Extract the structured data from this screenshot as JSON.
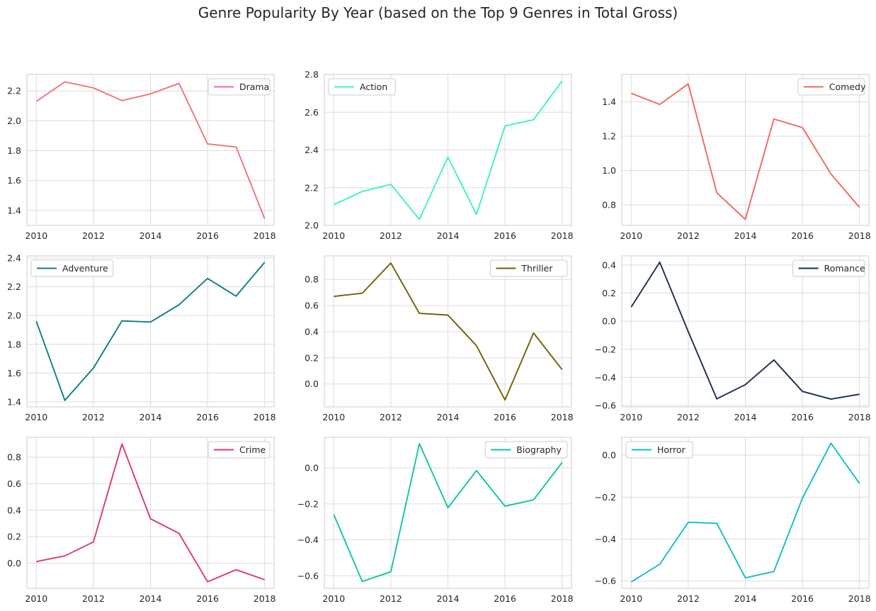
{
  "figure": {
    "title": "Genre Popularity By Year (based on the Top 9 Genres in Total Gross)"
  },
  "chart_data": [
    {
      "type": "line",
      "x": [
        2010,
        2011,
        2012,
        2013,
        2014,
        2015,
        2016,
        2017,
        2018
      ],
      "series": [
        {
          "name": "Drama",
          "values": [
            2.13,
            2.26,
            2.22,
            2.135,
            2.18,
            2.25,
            1.845,
            1.825,
            1.345
          ],
          "color": "#f0727f"
        }
      ],
      "xticks": [
        2010,
        2012,
        2014,
        2016,
        2018
      ],
      "yticks": [
        1.4,
        1.6,
        1.8,
        2.0,
        2.2
      ],
      "xlim": [
        2009.67,
        2018.33
      ],
      "ylim": [
        1.3,
        2.31
      ],
      "legend": "upper right",
      "grid": true
    },
    {
      "type": "line",
      "x": [
        2010,
        2011,
        2012,
        2013,
        2014,
        2015,
        2016,
        2017,
        2018
      ],
      "series": [
        {
          "name": "Action",
          "values": [
            2.11,
            2.18,
            2.218,
            2.032,
            2.362,
            2.058,
            2.527,
            2.56,
            2.765
          ],
          "color": "#3df5b9"
        }
      ],
      "xticks": [
        2010,
        2012,
        2014,
        2016,
        2018
      ],
      "yticks": [
        2.0,
        2.2,
        2.4,
        2.6,
        2.8
      ],
      "xlim": [
        2009.67,
        2018.33
      ],
      "ylim": [
        2.0,
        2.8
      ],
      "legend": "upper left",
      "grid": true
    },
    {
      "type": "line",
      "x": [
        2010,
        2011,
        2012,
        2013,
        2014,
        2015,
        2016,
        2017,
        2018
      ],
      "series": [
        {
          "name": "Comedy",
          "values": [
            1.45,
            1.385,
            1.505,
            0.87,
            0.715,
            1.3,
            1.25,
            0.98,
            0.785
          ],
          "color": "#f2685e"
        }
      ],
      "xticks": [
        2010,
        2012,
        2014,
        2016,
        2018
      ],
      "yticks": [
        0.8,
        1.0,
        1.2,
        1.4
      ],
      "xlim": [
        2009.67,
        2018.33
      ],
      "ylim": [
        0.68,
        1.56
      ],
      "legend": "upper right",
      "grid": true
    },
    {
      "type": "line",
      "x": [
        2010,
        2011,
        2012,
        2013,
        2014,
        2015,
        2016,
        2017,
        2018
      ],
      "series": [
        {
          "name": "Adventure",
          "values": [
            1.96,
            1.41,
            1.635,
            1.963,
            1.955,
            2.075,
            2.258,
            2.135,
            2.37
          ],
          "color": "#0c7f82"
        }
      ],
      "xticks": [
        2010,
        2012,
        2014,
        2016,
        2018
      ],
      "yticks": [
        1.4,
        1.6,
        1.8,
        2.0,
        2.2,
        2.4
      ],
      "xlim": [
        2009.67,
        2018.33
      ],
      "ylim": [
        1.365,
        2.415
      ],
      "legend": "upper left",
      "grid": true
    },
    {
      "type": "line",
      "x": [
        2010,
        2011,
        2012,
        2013,
        2014,
        2015,
        2016,
        2017,
        2018
      ],
      "series": [
        {
          "name": "Thriller",
          "values": [
            0.67,
            0.695,
            0.925,
            0.54,
            0.527,
            0.293,
            -0.122,
            0.39,
            0.11
          ],
          "color": "#6e6204"
        }
      ],
      "xticks": [
        2010,
        2012,
        2014,
        2016,
        2018
      ],
      "yticks": [
        0.0,
        0.2,
        0.4,
        0.6,
        0.8
      ],
      "xlim": [
        2009.67,
        2018.33
      ],
      "ylim": [
        -0.175,
        0.98
      ],
      "legend": "upper right",
      "grid": true
    },
    {
      "type": "line",
      "x": [
        2010,
        2011,
        2012,
        2013,
        2014,
        2015,
        2016,
        2017,
        2018
      ],
      "series": [
        {
          "name": "Romance",
          "values": [
            0.1,
            0.42,
            -0.075,
            -0.553,
            -0.452,
            -0.276,
            -0.5,
            -0.555,
            -0.52
          ],
          "color": "#1c2c52"
        }
      ],
      "xticks": [
        2010,
        2012,
        2014,
        2016,
        2018
      ],
      "yticks": [
        -0.6,
        -0.4,
        -0.2,
        0.0,
        0.2,
        0.4
      ],
      "xlim": [
        2009.67,
        2018.33
      ],
      "ylim": [
        -0.61,
        0.465
      ],
      "legend": "upper right",
      "grid": true
    },
    {
      "type": "line",
      "x": [
        2010,
        2011,
        2012,
        2013,
        2014,
        2015,
        2016,
        2017,
        2018
      ],
      "series": [
        {
          "name": "Crime",
          "values": [
            0.012,
            0.055,
            0.16,
            0.9,
            0.335,
            0.225,
            -0.14,
            -0.05,
            -0.125
          ],
          "color": "#da3c66"
        }
      ],
      "xticks": [
        2010,
        2012,
        2014,
        2016,
        2018
      ],
      "yticks": [
        0.0,
        0.2,
        0.4,
        0.6,
        0.8
      ],
      "xlim": [
        2009.67,
        2018.33
      ],
      "ylim": [
        -0.19,
        0.95
      ],
      "legend": "upper right",
      "grid": true
    },
    {
      "type": "line",
      "x": [
        2010,
        2011,
        2012,
        2013,
        2014,
        2015,
        2016,
        2017,
        2018
      ],
      "series": [
        {
          "name": "Biography",
          "values": [
            -0.26,
            -0.632,
            -0.578,
            0.135,
            -0.222,
            -0.015,
            -0.213,
            -0.178,
            0.03
          ],
          "color": "#0fc6a2"
        }
      ],
      "xticks": [
        2010,
        2012,
        2014,
        2016,
        2018
      ],
      "yticks": [
        -0.6,
        -0.4,
        -0.2,
        0.0
      ],
      "xlim": [
        2009.67,
        2018.33
      ],
      "ylim": [
        -0.67,
        0.17
      ],
      "legend": "upper right",
      "grid": true
    },
    {
      "type": "line",
      "x": [
        2010,
        2011,
        2012,
        2013,
        2014,
        2015,
        2016,
        2017,
        2018
      ],
      "series": [
        {
          "name": "Horror",
          "values": [
            -0.605,
            -0.52,
            -0.32,
            -0.325,
            -0.585,
            -0.555,
            -0.205,
            0.057,
            -0.135
          ],
          "color": "#13bfc0"
        }
      ],
      "xticks": [
        2010,
        2012,
        2014,
        2016,
        2018
      ],
      "yticks": [
        -0.6,
        -0.4,
        -0.2,
        0.0
      ],
      "xlim": [
        2009.67,
        2018.33
      ],
      "ylim": [
        -0.635,
        0.085
      ],
      "legend": "upper left",
      "grid": true
    }
  ]
}
